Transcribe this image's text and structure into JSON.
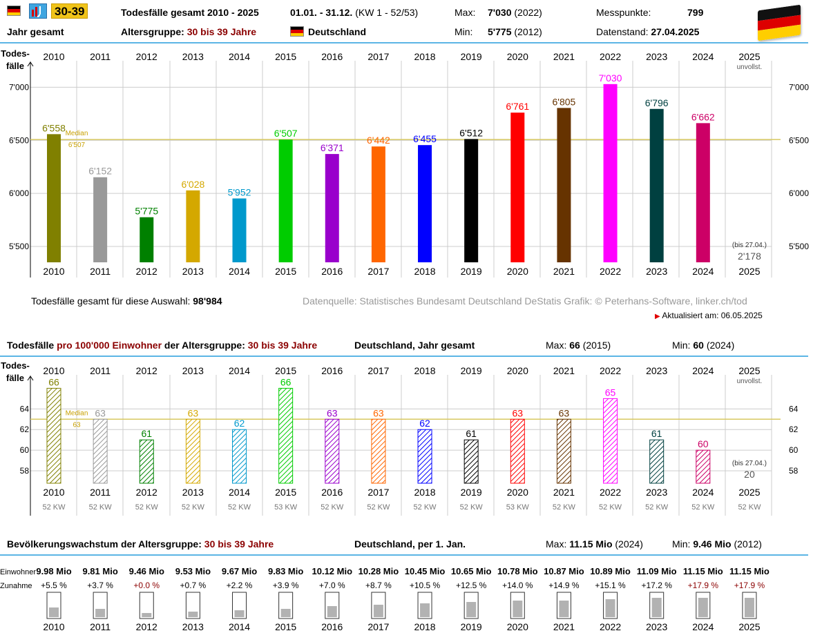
{
  "header": {
    "age_badge": "30-39",
    "title": "Todesfälle gesamt 2010 - 2025",
    "date_range": "01.01. - 31.12.",
    "kw_range": "(KW 1 - 52/53)",
    "max_label": "Max:",
    "max_value": "7'030",
    "max_year": "(2022)",
    "min_label": "Min:",
    "min_value": "5'775",
    "min_year": "(2012)",
    "messpunkte_label": "Messpunkte:",
    "messpunkte_value": "799",
    "jahr_gesamt": "Jahr gesamt",
    "altersgruppe_label": "Altersgruppe:",
    "altersgruppe_value": "30 bis 39 Jahre",
    "country": "Deutschland",
    "datenstand_label": "Datenstand:",
    "datenstand_value": "27.04.2025"
  },
  "footer1": {
    "total_label": "Todesfälle gesamt für diese Auswahl:",
    "total_value": "98'984",
    "source": "Datenquelle: Statistisches Bundesamt Deutschland DeStatis  Grafik: © Peterhans-Software, linker.ch/tod",
    "updated": "Aktualisiert am: 06.05.2025"
  },
  "section2": {
    "title_a": "Todesfälle",
    "title_b": "pro 100'000 Einwohner",
    "title_c": "der Altersgruppe:",
    "title_d": "30 bis 39 Jahre",
    "region": "Deutschland, Jahr gesamt",
    "max_label": "Max:",
    "max_value": "66",
    "max_year": "(2015)",
    "min_label": "Min:",
    "min_value": "60",
    "min_year": "(2024)"
  },
  "section3": {
    "title_a": "Bevölkerungswachstum der Altersgruppe:",
    "title_b": "30 bis 39 Jahre",
    "region": "Deutschland, per 1. Jan.",
    "max_label": "Max:",
    "max_value": "11.15 Mio",
    "max_year": "(2024)",
    "min_label": "Min:",
    "min_value": "9.46 Mio",
    "min_year": "(2012)",
    "row_label_pop": "Einwohner",
    "row_label_growth": "Zunahme"
  },
  "chart_data": [
    {
      "type": "bar",
      "ylabel": "Todes-\nfälle",
      "ylim": [
        5350,
        7250
      ],
      "yticks": [
        5500,
        6000,
        6500,
        7000
      ],
      "ytick_labels": [
        "5'500",
        "6'000",
        "6'500",
        "7'000"
      ],
      "grid": true,
      "median": 6507,
      "median_label": "Median",
      "median_value_label": "6'507",
      "categories": [
        "2010",
        "2011",
        "2012",
        "2013",
        "2014",
        "2015",
        "2016",
        "2017",
        "2018",
        "2019",
        "2020",
        "2021",
        "2022",
        "2023",
        "2024",
        "2025"
      ],
      "values": [
        6558,
        6152,
        5775,
        6028,
        5952,
        6507,
        6371,
        6442,
        6455,
        6512,
        6761,
        6805,
        7030,
        6796,
        6662,
        null
      ],
      "value_labels": [
        "6'558",
        "6'152",
        "5'775",
        "6'028",
        "5'952",
        "6'507",
        "6'371",
        "6'442",
        "6'455",
        "6'512",
        "6'761",
        "6'805",
        "7'030",
        "6'796",
        "6'662",
        ""
      ],
      "colors": [
        "#808000",
        "#999999",
        "#008000",
        "#d4a800",
        "#0099cc",
        "#00cc00",
        "#9900cc",
        "#ff6600",
        "#0000ff",
        "#000000",
        "#ff0000",
        "#663300",
        "#ff00ff",
        "#004040",
        "#cc0066",
        "#666666"
      ],
      "kw": [
        "52 KW",
        "52 KW",
        "52 KW",
        "52 KW",
        "52 KW",
        "53 KW",
        "52 KW",
        "52 KW",
        "52 KW",
        "52 KW",
        "53 KW",
        "52 KW",
        "52 KW",
        "52 KW",
        "52 KW",
        "52 KW"
      ],
      "incomplete_label": "unvollst.",
      "partial_note": "(bis 27.04.)",
      "partial_value": "2'178"
    },
    {
      "type": "bar",
      "ylabel": "Todes-\nfälle",
      "ylim": [
        56.8,
        67.3
      ],
      "yticks": [
        58,
        60,
        62,
        64
      ],
      "ytick_labels": [
        "58",
        "60",
        "62",
        "64"
      ],
      "grid": true,
      "median": 63,
      "median_label": "Median",
      "median_value_label": "63",
      "categories": [
        "2010",
        "2011",
        "2012",
        "2013",
        "2014",
        "2015",
        "2016",
        "2017",
        "2018",
        "2019",
        "2020",
        "2021",
        "2022",
        "2023",
        "2024",
        "2025"
      ],
      "values": [
        66,
        63,
        61,
        63,
        62,
        66,
        63,
        63,
        62,
        61,
        63,
        63,
        65,
        61,
        60,
        null
      ],
      "value_labels": [
        "66",
        "63",
        "61",
        "63",
        "62",
        "66",
        "63",
        "63",
        "62",
        "61",
        "63",
        "63",
        "65",
        "61",
        "60",
        ""
      ],
      "colors": [
        "#808000",
        "#999999",
        "#008000",
        "#d4a800",
        "#0099cc",
        "#00cc00",
        "#9900cc",
        "#ff6600",
        "#0000ff",
        "#000000",
        "#ff0000",
        "#663300",
        "#ff00ff",
        "#004040",
        "#cc0066",
        "#666666"
      ],
      "kw": [
        "52 KW",
        "52 KW",
        "52 KW",
        "52 KW",
        "52 KW",
        "53 KW",
        "52 KW",
        "52 KW",
        "52 KW",
        "52 KW",
        "53 KW",
        "52 KW",
        "52 KW",
        "52 KW",
        "52 KW",
        "52 KW"
      ],
      "incomplete_label": "unvollst.",
      "partial_note": "(bis 27.04.)",
      "partial_value": "20"
    },
    {
      "type": "bar",
      "categories": [
        "2010",
        "2011",
        "2012",
        "2013",
        "2014",
        "2015",
        "2016",
        "2017",
        "2018",
        "2019",
        "2020",
        "2021",
        "2022",
        "2023",
        "2024",
        "2025"
      ],
      "population_mio": [
        9.98,
        9.81,
        9.46,
        9.53,
        9.67,
        9.83,
        10.12,
        10.28,
        10.45,
        10.65,
        10.78,
        10.87,
        10.89,
        11.09,
        11.15,
        11.15
      ],
      "population_labels": [
        "9.98 Mio",
        "9.81 Mio",
        "9.46 Mio",
        "9.53 Mio",
        "9.67 Mio",
        "9.83 Mio",
        "10.12 Mio",
        "10.28 Mio",
        "10.45 Mio",
        "10.65 Mio",
        "10.78 Mio",
        "10.87 Mio",
        "10.89 Mio",
        "11.09 Mio",
        "11.15 Mio",
        "11.15 Mio"
      ],
      "growth_percent": [
        5.5,
        3.7,
        0.0,
        0.7,
        2.2,
        3.9,
        7.0,
        8.7,
        10.5,
        12.5,
        14.0,
        14.9,
        15.1,
        17.2,
        17.9,
        17.9
      ],
      "growth_labels": [
        "+5.5 %",
        "+3.7 %",
        "+0.0 %",
        "+0.7 %",
        "+2.2 %",
        "+3.9 %",
        "+7.0 %",
        "+8.7 %",
        "+10.5 %",
        "+12.5 %",
        "+14.0 %",
        "+14.9 %",
        "+15.1 %",
        "+17.2 %",
        "+17.9 %",
        "+17.9 %"
      ],
      "highlight_color": "#8b0000"
    }
  ]
}
